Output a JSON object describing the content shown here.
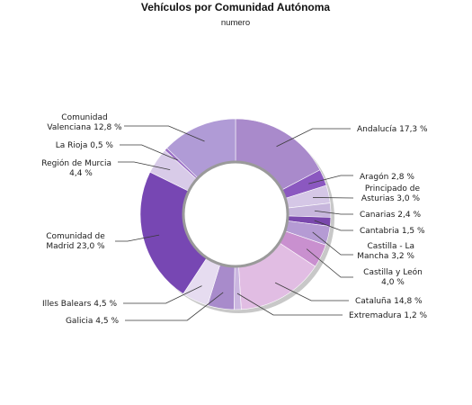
{
  "chart_data": {
    "type": "pie",
    "subtype": "donut",
    "title": "Vehículos por Comunidad Autónoma",
    "subtitle": "numero",
    "slices": [
      {
        "label": "Andalucía",
        "value": 17.3,
        "text": "Andalucía 17,3 %",
        "color": "#a98acb"
      },
      {
        "label": "Aragón",
        "value": 2.8,
        "text": "Aragón 2,8 %",
        "color": "#8b58c0"
      },
      {
        "label": "Principado de Asturias",
        "value": 3.0,
        "text": "Principado de Asturias 3,0 %",
        "color": "#d5c7e6"
      },
      {
        "label": "Canarias",
        "value": 2.4,
        "text": "Canarias 2,4 %",
        "color": "#c7b6dc"
      },
      {
        "label": "Cantabria",
        "value": 1.5,
        "text": "Cantabria 1,5 %",
        "color": "#7a48ad"
      },
      {
        "label": "Castilla - La Mancha",
        "value": 3.2,
        "text": "Castilla - La Mancha 3,2 %",
        "color": "#b59bd4"
      },
      {
        "label": "Castilla y León",
        "value": 4.0,
        "text": "Castilla y León 4,0 %",
        "color": "#c990cf"
      },
      {
        "label": "Cataluña",
        "value": 14.8,
        "text": "Cataluña 14,8 %",
        "color": "#e1bde3"
      },
      {
        "label": "Extremadura",
        "value": 1.2,
        "text": "Extremadura 1,2 %",
        "color": "#cbb7e0"
      },
      {
        "label": "Galicia",
        "value": 4.5,
        "text": "Galicia 4,5 %",
        "color": "#a88bcb"
      },
      {
        "label": "Illes Balears",
        "value": 4.5,
        "text": "Illes Balears 4,5 %",
        "color": "#e6dcf0"
      },
      {
        "label": "Comunidad de Madrid",
        "value": 23.0,
        "text": "Comunidad de Madrid 23,0 %",
        "color": "#7747b3"
      },
      {
        "label": "Región de Murcia",
        "value": 4.4,
        "text": "Región de Murcia 4,4 %",
        "color": "#d8cbe8"
      },
      {
        "label": "La Rioja",
        "value": 0.5,
        "text": "La Rioja 0,5 %",
        "color": "#9b6fc6"
      },
      {
        "label": "Comunidad Valenciana",
        "value": 12.8,
        "text": "Comunidad Valenciana 12,8 %",
        "color": "#b09bd6"
      }
    ]
  }
}
